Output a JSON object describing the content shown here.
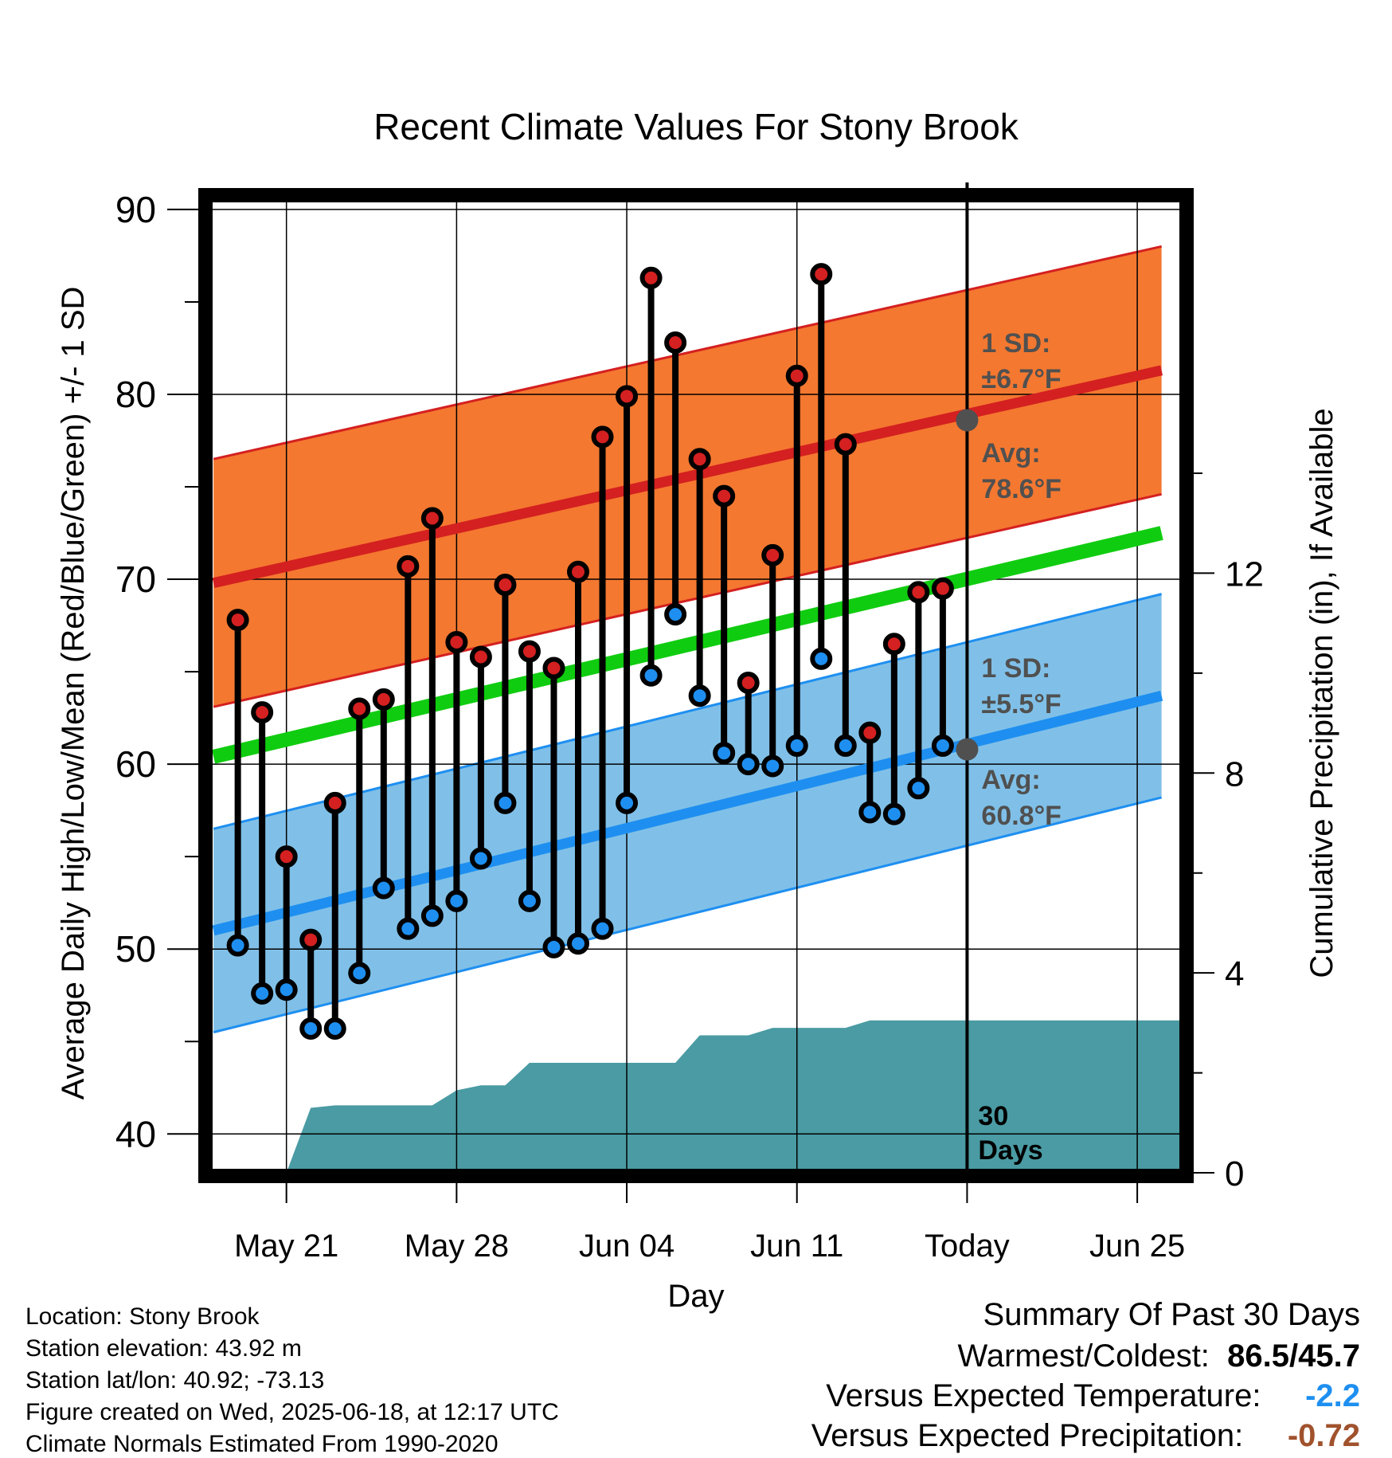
{
  "chart_data": {
    "type": "line",
    "title": "Recent Climate Values For Stony Brook",
    "xlabel": "Day",
    "ylabel": "Average Daily High/Low/Mean (Red/Blue/Green) +/- 1 SD",
    "ylabel_right": "Cumulative Precipitation (in), If Available",
    "ylim": [
      37.9,
      90.6
    ],
    "yticks": [
      40,
      50,
      60,
      70,
      80,
      90
    ],
    "ylim_right": [
      0,
      19.5
    ],
    "yticks_right": [
      0,
      4,
      8,
      12
    ],
    "x_tick_labels": [
      "May 21",
      "May 28",
      "Jun 04",
      "Jun 11",
      "Today",
      "Jun 25"
    ],
    "x_tick_days": [
      2,
      9,
      16,
      23,
      30,
      37
    ],
    "xlim": [
      -1.2,
      38.7
    ],
    "today_marker": {
      "day": 30,
      "label_line1": "30",
      "label_line2": "Days"
    },
    "grid": true,
    "colors": {
      "high_band": "#f47830",
      "high_line": "#d42020",
      "low_band": "#80c0e8",
      "low_line": "#1e8ff0",
      "mean_line": "#10cc10",
      "precip": "#4a9ba3",
      "point_high": "#d42020",
      "point_low": "#1e8ff0",
      "avg_dot": "#505050",
      "annotation_text": "#505050"
    },
    "normals": {
      "days": [
        -1,
        38
      ],
      "avg_high": [
        69.8,
        81.3
      ],
      "avg_low": [
        51.0,
        63.7
      ],
      "avg_mean": [
        60.4,
        72.5
      ],
      "high_sd": 6.7,
      "low_sd": 5.5
    },
    "annotations": {
      "high_sd_line1": "1 SD:",
      "high_sd_line2": "±6.7°F",
      "high_avg_line1": "Avg:",
      "high_avg_line2": "78.6°F",
      "low_sd_line1": "1 SD:",
      "low_sd_line2": "±5.5°F",
      "low_avg_line1": "Avg:",
      "low_avg_line2": "60.8°F",
      "high_avg_value": 78.6,
      "low_avg_value": 60.8
    },
    "days": [
      0,
      1,
      2,
      3,
      4,
      5,
      6,
      7,
      8,
      9,
      10,
      11,
      12,
      13,
      14,
      15,
      16,
      17,
      18,
      19,
      20,
      21,
      22,
      23,
      24,
      25,
      26,
      27,
      28,
      29
    ],
    "highs": [
      67.8,
      62.8,
      55.0,
      50.5,
      57.9,
      63.0,
      63.5,
      70.7,
      73.3,
      66.6,
      65.8,
      69.7,
      66.1,
      65.2,
      70.4,
      77.7,
      79.9,
      86.3,
      82.8,
      76.5,
      74.5,
      64.4,
      71.3,
      81.0,
      86.5,
      77.3,
      61.7,
      66.5,
      69.3,
      69.5
    ],
    "lows": [
      50.2,
      47.6,
      47.8,
      45.7,
      45.7,
      48.7,
      53.3,
      51.1,
      51.8,
      52.6,
      54.9,
      57.9,
      52.6,
      50.1,
      50.3,
      51.1,
      57.9,
      64.8,
      68.1,
      63.7,
      60.6,
      60.0,
      59.9,
      61.0,
      65.7,
      61.0,
      57.4,
      57.3,
      58.7,
      61.0
    ],
    "precip_cumulative": {
      "days": [
        2,
        3,
        4,
        5,
        6,
        7,
        8,
        9,
        10,
        11,
        12,
        13,
        14,
        15,
        16,
        17,
        18,
        19,
        20,
        21,
        22,
        23,
        24,
        25,
        26,
        27,
        28,
        29,
        30,
        31,
        32,
        33,
        34,
        35,
        36,
        37,
        38
      ],
      "values": [
        0,
        1.3,
        1.35,
        1.35,
        1.35,
        1.35,
        1.35,
        1.65,
        1.75,
        1.75,
        2.2,
        2.2,
        2.2,
        2.2,
        2.2,
        2.2,
        2.2,
        2.75,
        2.75,
        2.75,
        2.9,
        2.9,
        2.9,
        2.9,
        3.05,
        3.05,
        3.05,
        3.05,
        3.05,
        3.05,
        3.05,
        3.05,
        3.05,
        3.05,
        3.05,
        3.05,
        3.05
      ]
    }
  },
  "info": {
    "location": "Location: Stony Brook",
    "elevation": "Station elevation: 43.92 m",
    "latlon": "Station lat/lon: 40.92; -73.13",
    "created": "Figure created on Wed, 2025-06-18, at 12:17 UTC",
    "normals": "Climate Normals Estimated From 1990-2020"
  },
  "summary": {
    "heading": "Summary Of Past 30 Days",
    "warm_cold_label": "Warmest/Coldest:",
    "warmest": "86.5",
    "separator": "/",
    "coldest": "45.7",
    "temp_label": "Versus Expected Temperature:",
    "temp_value": "-2.2",
    "temp_color": "#1e8ff0",
    "precip_label": "Versus Expected Precipitation:",
    "precip_value": "-0.72",
    "precip_color": "#a0522d"
  }
}
